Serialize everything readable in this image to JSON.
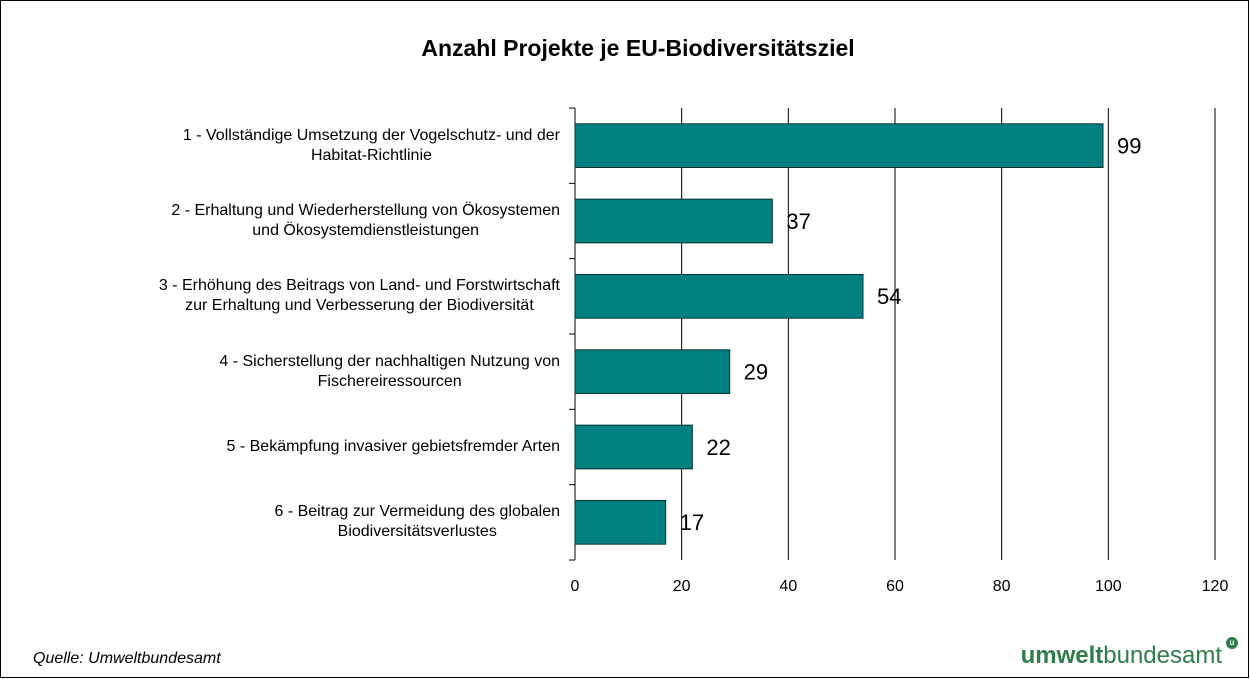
{
  "chart_data": {
    "type": "bar",
    "orientation": "horizontal",
    "title": "Anzahl Projekte je EU-Biodiversitätsziel",
    "categories": [
      "1 - Vollständige Umsetzung der Vogelschutz- und der\nHabitat-Richtlinie",
      "2 - Erhaltung und Wiederherstellung von Ökosystemen\nund Ökosystemdienstleistungen",
      "3 - Erhöhung des Beitrags von Land- und Forstwirtschaft\nzur Erhaltung und Verbesserung der Biodiversität",
      "4 - Sicherstellung der nachhaltigen Nutzung von\nFischereiressourcen",
      "5 - Bekämpfung invasiver gebietsfremder Arten",
      "6 - Beitrag zur Vermeidung des globalen\nBiodiversitätsverlustes"
    ],
    "values": [
      99,
      37,
      54,
      29,
      22,
      17
    ],
    "color": "#008080",
    "xlim": [
      0,
      120
    ],
    "xticks": [
      0,
      20,
      40,
      60,
      80,
      100,
      120
    ],
    "grid": true,
    "source": "Quelle: Umweltbundesamt",
    "logo": {
      "bold": "umwelt",
      "regular": "bundesamt"
    }
  }
}
